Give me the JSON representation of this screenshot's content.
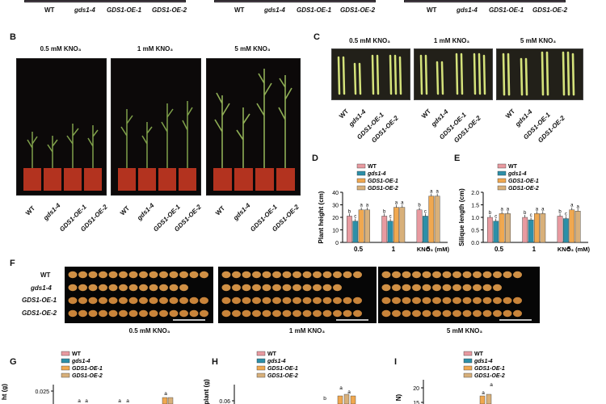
{
  "genotypes": [
    "WT",
    "gds1-4",
    "GDS1-OE-1",
    "GDS1-OE-2"
  ],
  "conditions": [
    "0.5 mM KNO₃",
    "1 mM KNO₃",
    "5 mM KNO₃"
  ],
  "panel_labels": {
    "B": "B",
    "C": "C",
    "D": "D",
    "E": "E",
    "F": "F",
    "G": "G",
    "H": "H",
    "I": "I"
  },
  "top_strip": {
    "labels": [
      "WT",
      "gds1-4",
      "GDS1-OE-1",
      "GDS1-OE-2"
    ]
  },
  "panel_f": {
    "row_labels": [
      "WT",
      "gds1-4",
      "GDS1-OE-1",
      "GDS1-OE-2"
    ]
  },
  "colors": {
    "WT": "#e89aa0",
    "gds1-4": "#2c8fa8",
    "GDS1-OE-1": "#f0a850",
    "GDS1-OE-2": "#d8b07a"
  },
  "chart_data": [
    {
      "panel": "D",
      "type": "bar",
      "ylabel": "Plant height (cm)",
      "xlabel": "KNO₃ (mM)",
      "categories": [
        "0.5",
        "1",
        "5"
      ],
      "yticks": [
        "0",
        "10",
        "20",
        "30",
        "40"
      ],
      "ylim": [
        0,
        40
      ],
      "legend": [
        "WT",
        "gds1-4",
        "GDS1-OE-1",
        "GDS1-OE-2"
      ],
      "series": [
        {
          "name": "WT",
          "values": [
            21,
            21,
            26
          ],
          "letters": [
            "b",
            "b",
            "b"
          ]
        },
        {
          "name": "gds1-4",
          "values": [
            17,
            17,
            21
          ],
          "letters": [
            "c",
            "c",
            "c"
          ]
        },
        {
          "name": "GDS1-OE-1",
          "values": [
            26,
            28,
            37
          ],
          "letters": [
            "a",
            "a",
            "a"
          ]
        },
        {
          "name": "GDS1-OE-2",
          "values": [
            26,
            28,
            37
          ],
          "letters": [
            "a",
            "a",
            "a"
          ]
        }
      ]
    },
    {
      "panel": "E",
      "type": "bar",
      "ylabel": "Silique length (cm)",
      "xlabel": "KNO₃ (mM)",
      "categories": [
        "0.5",
        "1",
        "5"
      ],
      "yticks": [
        "0.0",
        "0.5",
        "1.0",
        "1.5",
        "2.0"
      ],
      "ylim": [
        0,
        2.0
      ],
      "legend": [
        "WT",
        "gds1-4",
        "GDS1-OE-1",
        "GDS1-OE-2"
      ],
      "series": [
        {
          "name": "WT",
          "values": [
            1.0,
            1.0,
            1.05
          ],
          "letters": [
            "b",
            "b",
            "b"
          ]
        },
        {
          "name": "gds1-4",
          "values": [
            0.85,
            0.9,
            0.95
          ],
          "letters": [
            "c",
            "c",
            "c"
          ]
        },
        {
          "name": "GDS1-OE-1",
          "values": [
            1.15,
            1.15,
            1.3
          ],
          "letters": [
            "a",
            "a",
            "a"
          ]
        },
        {
          "name": "GDS1-OE-2",
          "values": [
            1.15,
            1.15,
            1.25
          ],
          "letters": [
            "a",
            "a",
            "a"
          ]
        }
      ]
    },
    {
      "panel": "G",
      "type": "bar",
      "ylabel": "ht (g)",
      "yticks": [
        "0.025"
      ],
      "legend": [
        "WT",
        "gds1-4",
        "GDS1-OE-1",
        "GDS1-OE-2"
      ],
      "letters_visible": [
        "a",
        "a",
        "a",
        "a",
        "a"
      ]
    },
    {
      "panel": "H",
      "type": "bar",
      "ylabel": "plant (g)",
      "yticks": [
        "0.06"
      ],
      "legend": [
        "WT",
        "gds1-4",
        "GDS1-OE-1",
        "GDS1-OE-2"
      ],
      "letters_visible": [
        "b",
        "a",
        "a"
      ]
    },
    {
      "panel": "I",
      "type": "bar",
      "ylabel": "N)",
      "yticks": [
        "20",
        "15"
      ],
      "legend": [
        "WT",
        "gds1-4",
        "GDS1-OE-1",
        "GDS1-OE-2"
      ],
      "letters_visible": [
        "a",
        "a"
      ]
    }
  ]
}
